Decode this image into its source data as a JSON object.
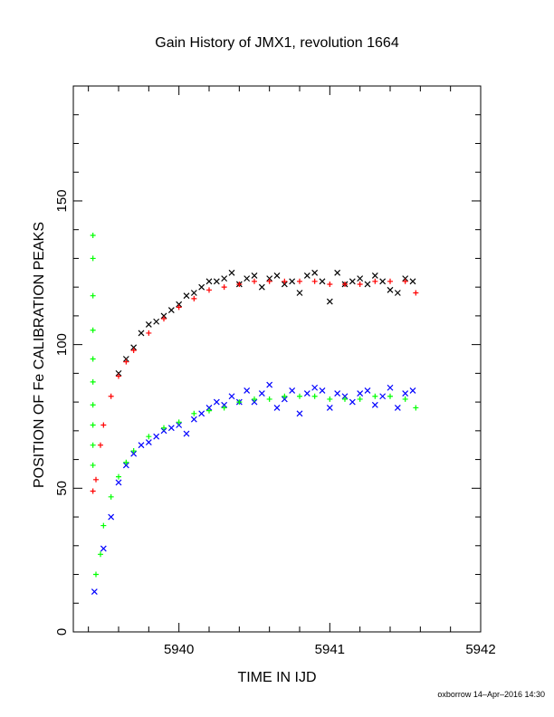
{
  "chart_data": {
    "type": "scatter",
    "title": "Gain History of JMX1, revolution 1664",
    "xlabel": "TIME IN IJD",
    "ylabel": "POSITION OF Fe CALIBRATION PEAKS",
    "xlim": [
      5939.3,
      5942.0
    ],
    "ylim": [
      0,
      190
    ],
    "x_ticks": [
      5940,
      5941,
      5942
    ],
    "y_ticks": [
      0,
      50,
      100,
      150
    ],
    "grid": false,
    "footer": "oxborrow 14–Apr–2016 14:30",
    "colors": {
      "upper_raw": "#000000",
      "upper_fit": "#ff0000",
      "lower_raw": "#0000ff",
      "lower_fit": "#00ff00"
    },
    "series": [
      {
        "marker": "x",
        "color": "#000000",
        "x": [
          5939.6,
          5939.65,
          5939.7,
          5939.75,
          5939.8,
          5939.85,
          5939.9,
          5939.95,
          5940.0,
          5940.05,
          5940.1,
          5940.15,
          5940.2,
          5940.25,
          5940.3,
          5940.35,
          5940.4,
          5940.45,
          5940.5,
          5940.55,
          5940.6,
          5940.65,
          5940.7,
          5940.75,
          5940.8,
          5940.85,
          5940.9,
          5940.95,
          5941.0,
          5941.05,
          5941.1,
          5941.15,
          5941.2,
          5941.25,
          5941.3,
          5941.35,
          5941.4,
          5941.45,
          5941.5,
          5941.55
        ],
        "y": [
          90,
          95,
          99,
          104,
          107,
          108,
          110,
          112,
          114,
          117,
          118,
          120,
          122,
          122,
          123,
          125,
          121,
          123,
          124,
          120,
          123,
          124,
          121,
          122,
          118,
          124,
          125,
          122,
          115,
          125,
          121,
          122,
          123,
          121,
          124,
          122,
          119,
          118,
          123,
          122
        ]
      },
      {
        "marker": "+",
        "color": "#ff0000",
        "x": [
          5939.43,
          5939.45,
          5939.48,
          5939.5,
          5939.55,
          5939.6,
          5939.65,
          5939.7,
          5939.8,
          5939.9,
          5940.0,
          5940.1,
          5940.2,
          5940.3,
          5940.4,
          5940.5,
          5940.6,
          5940.7,
          5940.8,
          5940.9,
          5941.0,
          5941.1,
          5941.2,
          5941.3,
          5941.4,
          5941.5,
          5941.57
        ],
        "y": [
          49,
          53,
          65,
          72,
          82,
          89,
          94,
          98,
          104,
          109,
          113,
          116,
          119,
          120,
          121,
          122,
          122,
          122,
          122,
          122,
          121,
          121,
          121,
          122,
          122,
          122,
          118
        ]
      },
      {
        "marker": "x",
        "color": "#0000ff",
        "x": [
          5939.44,
          5939.5,
          5939.55,
          5939.6,
          5939.65,
          5939.7,
          5939.75,
          5939.8,
          5939.85,
          5939.9,
          5939.95,
          5940.0,
          5940.05,
          5940.1,
          5940.15,
          5940.2,
          5940.25,
          5940.3,
          5940.35,
          5940.4,
          5940.45,
          5940.5,
          5940.55,
          5940.6,
          5940.65,
          5940.7,
          5940.75,
          5940.8,
          5940.85,
          5940.9,
          5940.95,
          5941.0,
          5941.05,
          5941.1,
          5941.15,
          5941.2,
          5941.25,
          5941.3,
          5941.35,
          5941.4,
          5941.45,
          5941.5,
          5941.55
        ],
        "y": [
          14,
          29,
          40,
          52,
          58,
          62,
          65,
          66,
          68,
          70,
          71,
          72,
          69,
          74,
          76,
          78,
          80,
          79,
          82,
          80,
          84,
          80,
          83,
          86,
          78,
          81,
          84,
          76,
          83,
          85,
          84,
          78,
          83,
          82,
          80,
          83,
          84,
          79,
          82,
          85,
          78,
          83,
          84
        ]
      },
      {
        "marker": "+",
        "color": "#00ff00",
        "x": [
          5939.45,
          5939.48,
          5939.5,
          5939.55,
          5939.6,
          5939.65,
          5939.7,
          5939.8,
          5939.9,
          5940.0,
          5940.1,
          5940.2,
          5940.3,
          5940.4,
          5940.5,
          5940.6,
          5940.7,
          5940.8,
          5940.9,
          5941.0,
          5941.1,
          5941.2,
          5941.3,
          5941.4,
          5941.5,
          5941.57
        ],
        "y": [
          20,
          27,
          37,
          47,
          54,
          59,
          63,
          68,
          71,
          73,
          76,
          77,
          78,
          80,
          81,
          81,
          82,
          82,
          82,
          81,
          81,
          81,
          82,
          82,
          81,
          78
        ]
      },
      {
        "marker": "+",
        "color": "#00ff00",
        "x": [
          5939.43,
          5939.43,
          5939.43,
          5939.43,
          5939.43,
          5939.43,
          5939.43,
          5939.43,
          5939.43,
          5939.43
        ],
        "y": [
          138,
          130,
          117,
          105,
          95,
          87,
          79,
          72,
          65,
          58
        ]
      }
    ]
  }
}
